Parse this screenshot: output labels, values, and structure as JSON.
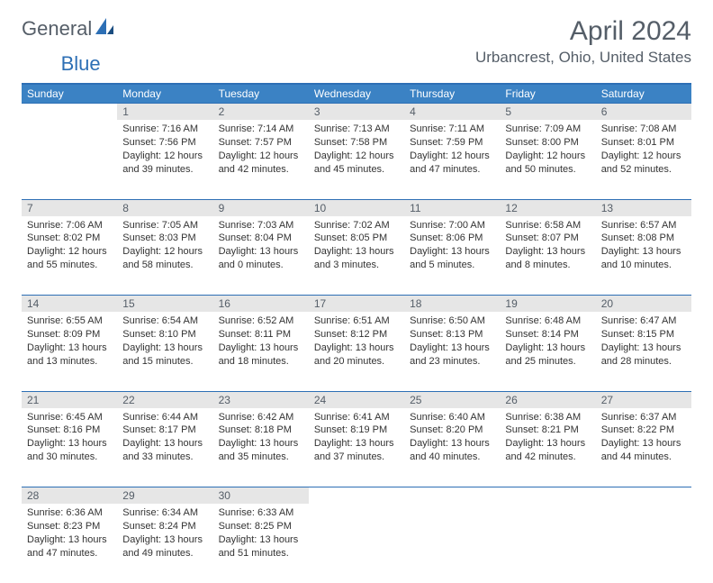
{
  "brand": {
    "text1": "General",
    "text2": "Blue"
  },
  "title": "April 2024",
  "location": "Urbancrest, Ohio, United States",
  "colors": {
    "header_bg": "#3b82c4",
    "header_text": "#ffffff",
    "daynum_bg": "#e6e6e6",
    "border": "#2d6fb5",
    "title_color": "#555e68"
  },
  "weekdays": [
    "Sunday",
    "Monday",
    "Tuesday",
    "Wednesday",
    "Thursday",
    "Friday",
    "Saturday"
  ],
  "weeks": [
    [
      null,
      {
        "n": "1",
        "sr": "7:16 AM",
        "ss": "7:56 PM",
        "dl": "12 hours and 39 minutes."
      },
      {
        "n": "2",
        "sr": "7:14 AM",
        "ss": "7:57 PM",
        "dl": "12 hours and 42 minutes."
      },
      {
        "n": "3",
        "sr": "7:13 AM",
        "ss": "7:58 PM",
        "dl": "12 hours and 45 minutes."
      },
      {
        "n": "4",
        "sr": "7:11 AM",
        "ss": "7:59 PM",
        "dl": "12 hours and 47 minutes."
      },
      {
        "n": "5",
        "sr": "7:09 AM",
        "ss": "8:00 PM",
        "dl": "12 hours and 50 minutes."
      },
      {
        "n": "6",
        "sr": "7:08 AM",
        "ss": "8:01 PM",
        "dl": "12 hours and 52 minutes."
      }
    ],
    [
      {
        "n": "7",
        "sr": "7:06 AM",
        "ss": "8:02 PM",
        "dl": "12 hours and 55 minutes."
      },
      {
        "n": "8",
        "sr": "7:05 AM",
        "ss": "8:03 PM",
        "dl": "12 hours and 58 minutes."
      },
      {
        "n": "9",
        "sr": "7:03 AM",
        "ss": "8:04 PM",
        "dl": "13 hours and 0 minutes."
      },
      {
        "n": "10",
        "sr": "7:02 AM",
        "ss": "8:05 PM",
        "dl": "13 hours and 3 minutes."
      },
      {
        "n": "11",
        "sr": "7:00 AM",
        "ss": "8:06 PM",
        "dl": "13 hours and 5 minutes."
      },
      {
        "n": "12",
        "sr": "6:58 AM",
        "ss": "8:07 PM",
        "dl": "13 hours and 8 minutes."
      },
      {
        "n": "13",
        "sr": "6:57 AM",
        "ss": "8:08 PM",
        "dl": "13 hours and 10 minutes."
      }
    ],
    [
      {
        "n": "14",
        "sr": "6:55 AM",
        "ss": "8:09 PM",
        "dl": "13 hours and 13 minutes."
      },
      {
        "n": "15",
        "sr": "6:54 AM",
        "ss": "8:10 PM",
        "dl": "13 hours and 15 minutes."
      },
      {
        "n": "16",
        "sr": "6:52 AM",
        "ss": "8:11 PM",
        "dl": "13 hours and 18 minutes."
      },
      {
        "n": "17",
        "sr": "6:51 AM",
        "ss": "8:12 PM",
        "dl": "13 hours and 20 minutes."
      },
      {
        "n": "18",
        "sr": "6:50 AM",
        "ss": "8:13 PM",
        "dl": "13 hours and 23 minutes."
      },
      {
        "n": "19",
        "sr": "6:48 AM",
        "ss": "8:14 PM",
        "dl": "13 hours and 25 minutes."
      },
      {
        "n": "20",
        "sr": "6:47 AM",
        "ss": "8:15 PM",
        "dl": "13 hours and 28 minutes."
      }
    ],
    [
      {
        "n": "21",
        "sr": "6:45 AM",
        "ss": "8:16 PM",
        "dl": "13 hours and 30 minutes."
      },
      {
        "n": "22",
        "sr": "6:44 AM",
        "ss": "8:17 PM",
        "dl": "13 hours and 33 minutes."
      },
      {
        "n": "23",
        "sr": "6:42 AM",
        "ss": "8:18 PM",
        "dl": "13 hours and 35 minutes."
      },
      {
        "n": "24",
        "sr": "6:41 AM",
        "ss": "8:19 PM",
        "dl": "13 hours and 37 minutes."
      },
      {
        "n": "25",
        "sr": "6:40 AM",
        "ss": "8:20 PM",
        "dl": "13 hours and 40 minutes."
      },
      {
        "n": "26",
        "sr": "6:38 AM",
        "ss": "8:21 PM",
        "dl": "13 hours and 42 minutes."
      },
      {
        "n": "27",
        "sr": "6:37 AM",
        "ss": "8:22 PM",
        "dl": "13 hours and 44 minutes."
      }
    ],
    [
      {
        "n": "28",
        "sr": "6:36 AM",
        "ss": "8:23 PM",
        "dl": "13 hours and 47 minutes."
      },
      {
        "n": "29",
        "sr": "6:34 AM",
        "ss": "8:24 PM",
        "dl": "13 hours and 49 minutes."
      },
      {
        "n": "30",
        "sr": "6:33 AM",
        "ss": "8:25 PM",
        "dl": "13 hours and 51 minutes."
      },
      null,
      null,
      null,
      null
    ]
  ],
  "labels": {
    "sunrise": "Sunrise:",
    "sunset": "Sunset:",
    "daylight": "Daylight:"
  }
}
